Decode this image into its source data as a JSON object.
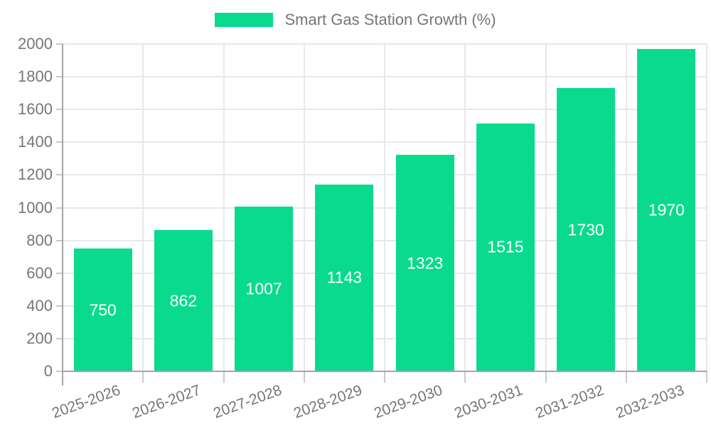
{
  "legend": {
    "items": [
      {
        "label": "Smart Gas Station Growth (%)"
      }
    ]
  },
  "colors": {
    "bar": "#0ada8e",
    "grid": "#e8e8e8",
    "axis_line": "#a5a5a5",
    "tick": "#c9c9c9",
    "axis_text": "#767676",
    "value_label_text": "#ffffff",
    "background": "#ffffff"
  },
  "chart_data": {
    "type": "bar",
    "title": "Smart Gas Station Growth (%)",
    "categories": [
      "2025-2026",
      "2026-2027",
      "2027-2028",
      "2028-2029",
      "2029-2030",
      "2030-2031",
      "2031-2032",
      "2032-2033"
    ],
    "values": [
      750,
      862,
      1007,
      1143,
      1323,
      1515,
      1730,
      1970
    ],
    "xlabel": "",
    "ylabel": "",
    "ylim": [
      0,
      2000
    ],
    "ytick_step": 200,
    "ytick_labels": [
      "0",
      "200",
      "400",
      "600",
      "800",
      "1000",
      "1200",
      "1400",
      "1600",
      "1800",
      "2000"
    ],
    "grid": true,
    "legend_position": "top",
    "value_labels": "inside-center",
    "x_label_rotation_deg": -20
  }
}
